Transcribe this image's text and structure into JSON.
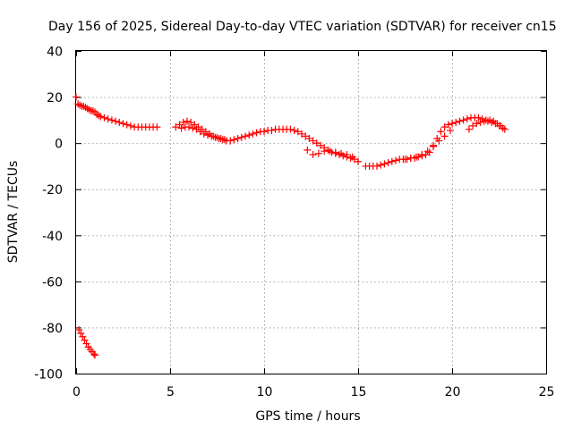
{
  "chart_data": {
    "type": "scatter",
    "title": "Day 156 of 2025, Sidereal Day-to-day VTEC variation (SDTVAR) for receiver cn15",
    "xlabel": "GPS time / hours",
    "ylabel": "SDTVAR / TECUs",
    "xlim": [
      0,
      25
    ],
    "ylim": [
      -100,
      40
    ],
    "xticks": [
      0,
      5,
      10,
      15,
      20,
      25
    ],
    "yticks": [
      -100,
      -80,
      -60,
      -40,
      -20,
      0,
      20,
      40
    ],
    "grid": true,
    "marker": "+",
    "color": "#ff0000",
    "series": [
      {
        "name": "SDTVAR",
        "x": [
          0.0,
          0.1,
          0.2,
          0.3,
          0.4,
          0.5,
          0.6,
          0.7,
          0.8,
          0.9,
          1.0,
          1.1,
          1.2,
          1.3,
          1.5,
          1.7,
          1.9,
          2.1,
          2.3,
          2.5,
          2.7,
          2.9,
          3.1,
          3.3,
          3.5,
          3.7,
          3.9,
          4.1,
          4.3,
          5.3,
          5.5,
          5.7,
          5.9,
          6.1,
          6.3,
          6.5,
          6.7,
          6.9,
          7.1,
          7.3,
          7.5,
          7.7,
          7.9,
          5.6,
          5.8,
          6.0,
          6.2,
          6.4,
          6.6,
          6.8,
          7.0,
          7.2,
          7.4,
          7.6,
          7.8,
          8.0,
          8.2,
          8.4,
          8.6,
          8.8,
          9.0,
          9.2,
          9.4,
          9.6,
          9.8,
          10.0,
          10.2,
          10.4,
          10.6,
          10.8,
          11.0,
          11.2,
          11.4,
          11.6,
          11.8,
          12.0,
          12.2,
          12.4,
          12.6,
          12.8,
          13.0,
          13.2,
          13.4,
          13.6,
          13.8,
          14.0,
          14.2,
          14.4,
          14.6,
          14.8,
          15.0,
          12.3,
          12.6,
          12.9,
          13.2,
          13.5,
          13.8,
          14.1,
          14.4,
          14.7,
          15.4,
          15.6,
          15.8,
          16.0,
          16.2,
          16.4,
          16.6,
          16.8,
          17.0,
          17.2,
          17.4,
          17.6,
          17.8,
          18.0,
          18.2,
          18.4,
          18.6,
          18.8,
          19.0,
          19.2,
          19.4,
          19.6,
          19.8,
          20.0,
          20.2,
          20.4,
          20.6,
          20.8,
          21.0,
          21.2,
          21.4,
          21.6,
          21.8,
          22.0,
          22.2,
          22.4,
          22.6,
          22.8,
          17.5,
          17.8,
          18.1,
          18.4,
          18.7,
          19.0,
          19.3,
          19.6,
          19.9,
          20.9,
          21.1,
          21.3,
          21.5,
          21.7,
          21.9,
          22.1,
          22.3,
          22.5,
          22.7,
          0.15,
          0.25,
          0.35,
          0.45,
          0.55,
          0.65,
          0.75,
          0.85,
          0.95,
          1.0
        ],
        "y": [
          20,
          17,
          16.5,
          16,
          16,
          15.5,
          15,
          14.5,
          14,
          14,
          13.5,
          12.5,
          12,
          11.5,
          11,
          10.5,
          10,
          9.5,
          9,
          8.5,
          8,
          7.5,
          7,
          7,
          7,
          7,
          7,
          7,
          7,
          7,
          8,
          9,
          9.5,
          9,
          8,
          7,
          6,
          5,
          4,
          3,
          2.5,
          2,
          1.5,
          6.5,
          7,
          7,
          6.5,
          6,
          5,
          4,
          3.5,
          3,
          2.5,
          2,
          1.5,
          1,
          1,
          1.5,
          2,
          2.5,
          3,
          3.5,
          4,
          4.5,
          5,
          5,
          5.5,
          5.5,
          6,
          6,
          6,
          6,
          6,
          5.5,
          5,
          4,
          3,
          2,
          1,
          0,
          -1,
          -2,
          -3,
          -4,
          -4.5,
          -5,
          -5.5,
          -6,
          -6.5,
          -7,
          -8,
          -3,
          -5,
          -4.5,
          -3.5,
          -3.5,
          -4,
          -4.5,
          -5,
          -6,
          -10,
          -10,
          -10,
          -10,
          -9.5,
          -9,
          -8.5,
          -8,
          -7.5,
          -7,
          -7,
          -7,
          -6.5,
          -6.5,
          -6,
          -5.5,
          -5,
          -4,
          -1,
          2,
          5,
          7,
          8,
          8.5,
          9,
          9.5,
          10,
          10.5,
          11,
          11,
          11,
          10.5,
          10,
          10,
          9.5,
          8.5,
          7.5,
          6,
          -7,
          -6.5,
          -6,
          -5,
          -3.5,
          -1.5,
          1,
          3,
          5.5,
          6,
          7.5,
          8.5,
          9,
          9.5,
          9.5,
          9,
          8.5,
          7.5,
          6.5,
          -81,
          -82.5,
          -84,
          -85.5,
          -87,
          -88.5,
          -89.5,
          -90.5,
          -91.5,
          -92
        ]
      }
    ]
  }
}
